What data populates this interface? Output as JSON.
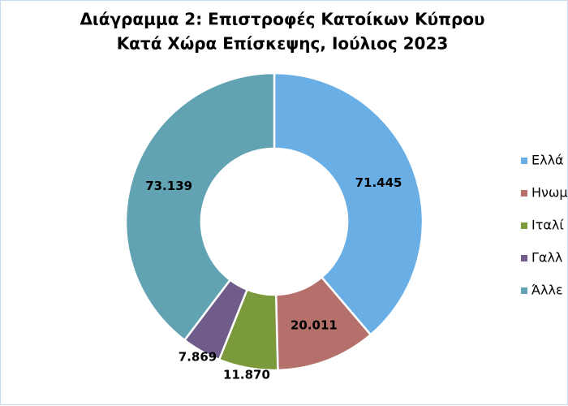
{
  "chart_data": {
    "type": "donut",
    "title": [
      "Διάγραμμα 2: Επιστροφές Κατοίκων Κύπρου",
      "Κατά Χώρα Επίσκεψης, Ιούλιος 2023"
    ],
    "categories": [
      "Ελλά",
      "Ηνωμ",
      "Ιταλί",
      "Γαλλ",
      "Άλλε"
    ],
    "values": [
      71445,
      20011,
      11870,
      7869,
      73139
    ],
    "value_labels": [
      "71.445",
      "20.011",
      "11.870",
      "7.869",
      "73.139"
    ],
    "colors": [
      "#6aaee6",
      "#b5706b",
      "#7a9a3c",
      "#6f5c8a",
      "#62a3b3"
    ],
    "legend": "right"
  }
}
